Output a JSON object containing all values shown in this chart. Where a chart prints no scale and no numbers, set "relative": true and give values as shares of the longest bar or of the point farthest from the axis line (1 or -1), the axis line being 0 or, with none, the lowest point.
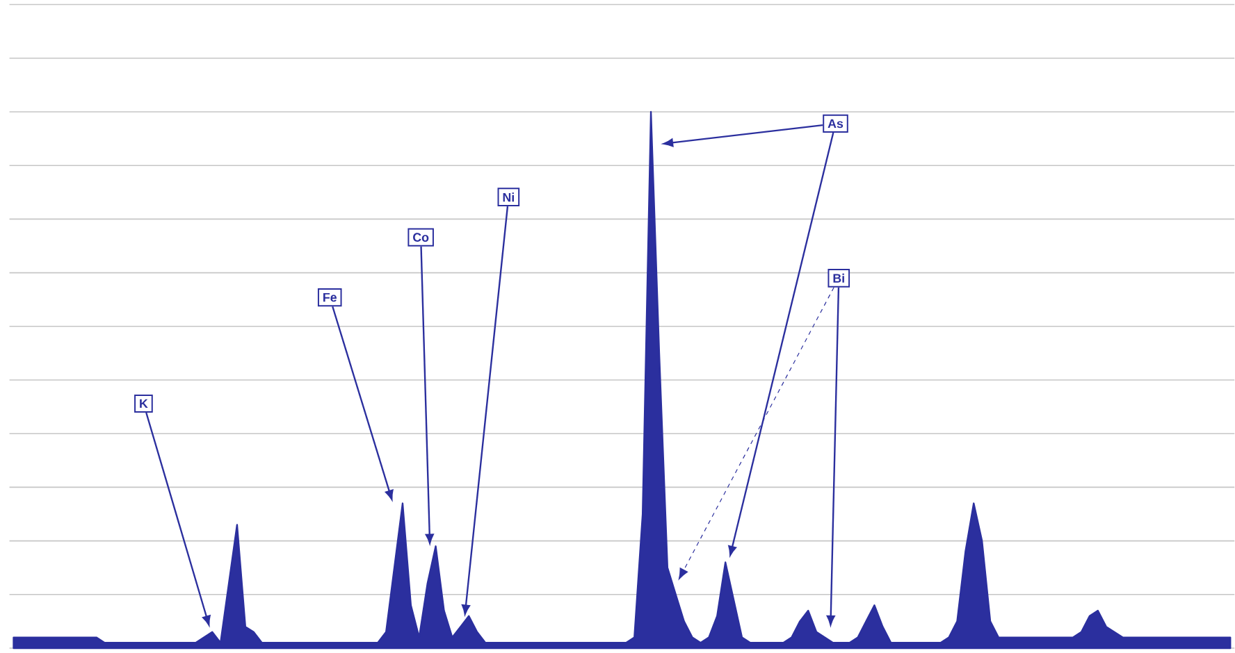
{
  "chart_data": {
    "type": "area",
    "relative": true,
    "grid": "y",
    "color": "#2b2f9e",
    "categories": [
      null,
      null,
      null,
      null,
      null,
      null,
      null,
      null,
      null,
      null,
      null,
      null,
      null,
      null,
      null,
      null,
      null,
      null,
      null,
      null,
      null,
      null,
      null,
      null,
      null,
      null,
      null,
      null,
      null,
      null,
      null,
      null,
      null,
      null,
      null,
      null,
      null,
      null,
      null,
      null,
      null,
      null,
      null,
      null,
      null,
      null,
      null,
      null,
      null,
      null,
      null,
      null,
      null,
      null,
      null,
      null,
      null,
      null,
      null,
      null,
      null,
      null,
      null,
      null,
      null,
      null,
      null,
      null,
      null,
      null,
      null,
      null,
      null,
      null,
      null,
      null,
      null,
      null,
      null,
      null,
      null,
      null,
      null,
      null,
      null,
      null,
      null,
      null,
      null,
      null,
      null,
      null,
      null,
      null,
      null,
      null,
      null,
      null,
      null,
      null,
      null,
      null,
      null,
      null,
      null,
      null,
      null,
      null,
      null,
      null,
      null,
      null,
      null,
      null,
      null,
      null,
      null,
      null,
      null,
      null,
      null,
      null,
      null,
      null,
      null,
      null,
      null,
      null,
      null,
      null,
      null,
      null,
      null,
      null,
      null,
      null,
      null,
      null,
      null,
      null,
      null,
      null,
      null,
      null,
      null,
      null,
      null,
      null
    ],
    "values": [
      0.02,
      0.02,
      0.02,
      0.02,
      0.02,
      0.02,
      0.02,
      0.02,
      0.02,
      0.02,
      0.02,
      0.01,
      0.01,
      0.01,
      0.01,
      0.01,
      0.01,
      0.01,
      0.01,
      0.01,
      0.01,
      0.01,
      0.01,
      0.02,
      0.03,
      0.01,
      0.12,
      0.23,
      0.04,
      0.03,
      0.01,
      0.01,
      0.01,
      0.01,
      0.01,
      0.01,
      0.01,
      0.01,
      0.01,
      0.01,
      0.01,
      0.01,
      0.01,
      0.01,
      0.01,
      0.03,
      0.15,
      0.27,
      0.08,
      0.02,
      0.12,
      0.19,
      0.07,
      0.02,
      0.04,
      0.06,
      0.03,
      0.01,
      0.01,
      0.01,
      0.01,
      0.01,
      0.01,
      0.01,
      0.01,
      0.01,
      0.01,
      0.01,
      0.01,
      0.01,
      0.01,
      0.01,
      0.01,
      0.01,
      0.01,
      0.02,
      0.25,
      1.0,
      0.55,
      0.15,
      0.1,
      0.05,
      0.02,
      0.01,
      0.02,
      0.06,
      0.16,
      0.09,
      0.02,
      0.01,
      0.01,
      0.01,
      0.01,
      0.01,
      0.02,
      0.05,
      0.07,
      0.03,
      0.02,
      0.01,
      0.01,
      0.01,
      0.02,
      0.05,
      0.08,
      0.04,
      0.01,
      0.01,
      0.01,
      0.01,
      0.01,
      0.01,
      0.01,
      0.02,
      0.05,
      0.18,
      0.27,
      0.2,
      0.05,
      0.02,
      0.02,
      0.02,
      0.02,
      0.02,
      0.02,
      0.02,
      0.02,
      0.02,
      0.02,
      0.03,
      0.06,
      0.07,
      0.04,
      0.03,
      0.02,
      0.02,
      0.02,
      0.02,
      0.02,
      0.02,
      0.02,
      0.02,
      0.02,
      0.02,
      0.02,
      0.02,
      0.02,
      0.02
    ],
    "annotations": [
      "K",
      "Fe",
      "Co",
      "Ni",
      "As",
      "Bi"
    ]
  }
}
